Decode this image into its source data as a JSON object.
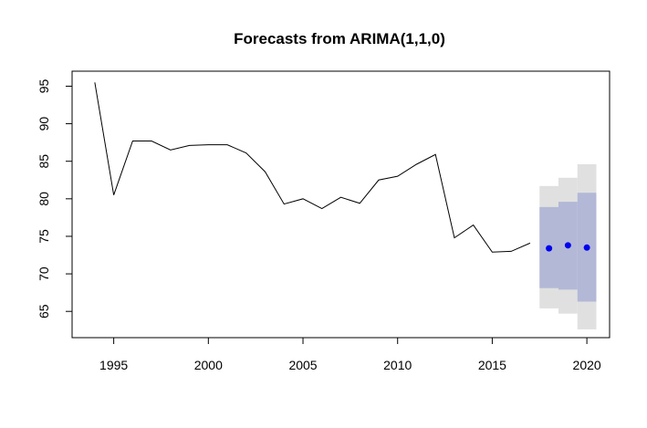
{
  "chart_data": {
    "type": "line",
    "title": "Forecasts from ARIMA(1,1,0)",
    "xlabel": "",
    "ylabel": "",
    "xlim": [
      1992.8,
      2021.2
    ],
    "ylim": [
      61.5,
      97.0
    ],
    "x_ticks": [
      1995,
      2000,
      2005,
      2010,
      2015,
      2020
    ],
    "y_ticks": [
      65,
      70,
      75,
      80,
      85,
      90,
      95
    ],
    "grid": false,
    "legend": "none",
    "observed": {
      "x": [
        1994,
        1995,
        1996,
        1997,
        1998,
        1999,
        2000,
        2001,
        2002,
        2003,
        2004,
        2005,
        2006,
        2007,
        2008,
        2009,
        2010,
        2011,
        2012,
        2013,
        2014,
        2015,
        2016,
        2017
      ],
      "y": [
        95.5,
        80.5,
        87.7,
        87.7,
        86.5,
        87.1,
        87.2,
        87.2,
        86.1,
        83.6,
        79.3,
        80.0,
        78.7,
        80.2,
        79.4,
        82.5,
        83.0,
        84.6,
        85.9,
        74.8,
        76.5,
        72.9,
        73.0,
        74.1
      ]
    },
    "forecast": {
      "x": [
        2018,
        2019,
        2020
      ],
      "mean": [
        73.4,
        73.8,
        73.5
      ],
      "lo80": [
        68.1,
        67.9,
        66.3
      ],
      "hi80": [
        78.9,
        79.6,
        80.8
      ],
      "lo95": [
        65.4,
        64.7,
        62.6
      ],
      "hi95": [
        81.7,
        82.8,
        84.6
      ]
    },
    "colors": {
      "line": "#000000",
      "point": "#0000ee",
      "band80": "#b2b8d6",
      "band95": "#e0e0e0",
      "axis": "#000000"
    }
  }
}
